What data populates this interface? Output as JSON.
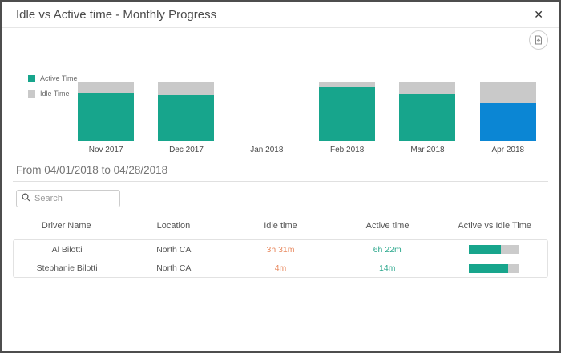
{
  "dialog": {
    "title": "Idle vs Active time - Monthly Progress",
    "close_glyph": "✕"
  },
  "toolbar": {
    "export_icon": "export-chart-icon"
  },
  "chart_data": {
    "type": "bar",
    "stacked": true,
    "unit": "percent-of-total",
    "legend_position": "left",
    "categories": [
      "Nov 2017",
      "Dec 2017",
      "Jan 2018",
      "Feb 2018",
      "Mar 2018",
      "Apr 2018"
    ],
    "series": [
      {
        "name": "Active Time",
        "color": "#17a58c",
        "values": [
          82,
          78,
          null,
          92,
          79,
          64
        ]
      },
      {
        "name": "Idle Time",
        "color": "#c9c9c9",
        "values": [
          18,
          22,
          null,
          8,
          21,
          36
        ]
      }
    ],
    "selected_category": "Apr 2018",
    "selected_color": "#0b86d4"
  },
  "filter": {
    "heading": "From 04/01/2018 to 04/28/2018"
  },
  "search": {
    "placeholder": "Search"
  },
  "table": {
    "columns": [
      "Driver Name",
      "Location",
      "Idle time",
      "Active time",
      "Active vs Idle Time"
    ],
    "rows": [
      {
        "driver": "Al Bilotti",
        "location": "North CA",
        "idle": "3h 31m",
        "active": "6h 22m",
        "active_pct": 64
      },
      {
        "driver": "Stephanie Bilotti",
        "location": "North CA",
        "idle": "4m",
        "active": "14m",
        "active_pct": 78
      }
    ]
  },
  "colors": {
    "active": "#17a58c",
    "idle": "#c9c9c9",
    "selected": "#0b86d4",
    "idle_text": "#e8895f",
    "active_text": "#2aa78c"
  }
}
